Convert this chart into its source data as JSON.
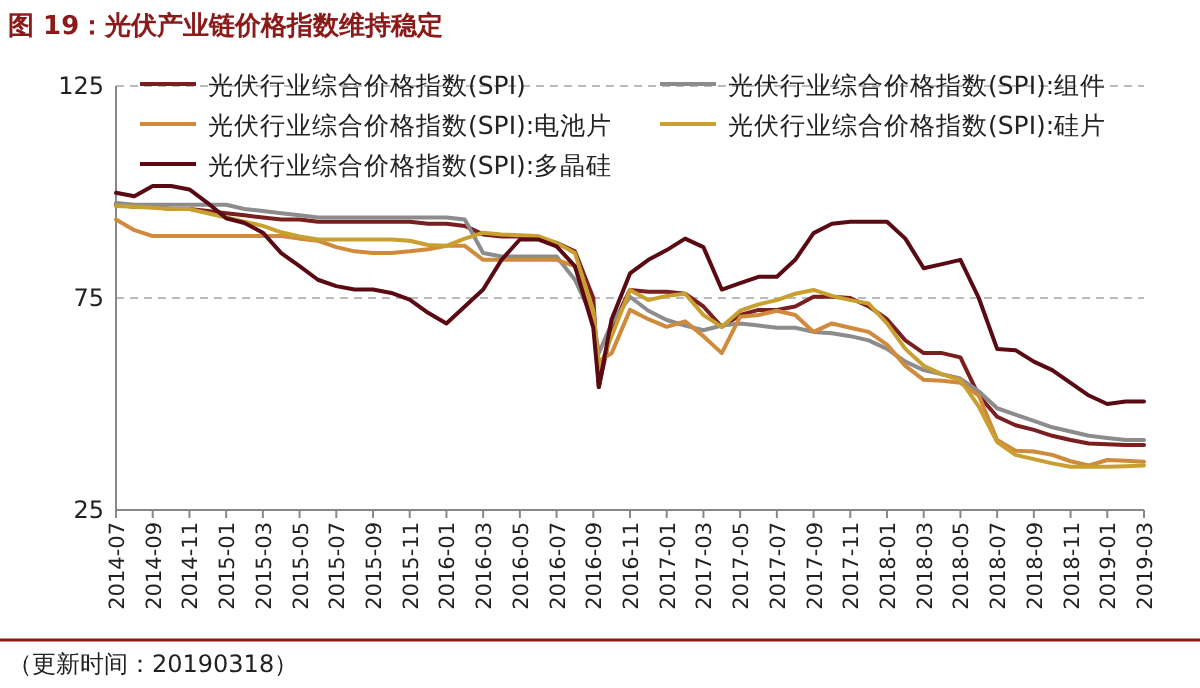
{
  "chart_data": {
    "type": "line",
    "title": "图 19：光伏产业链价格指数维持稳定",
    "annotations": [
      "（更新时间：20190318）"
    ],
    "x": [
      "2014-07",
      "2014-08",
      "2014-09",
      "2014-10",
      "2014-11",
      "2014-12",
      "2015-01",
      "2015-02",
      "2015-03",
      "2015-04",
      "2015-05",
      "2015-06",
      "2015-07",
      "2015-08",
      "2015-09",
      "2015-10",
      "2015-11",
      "2015-12",
      "2016-01",
      "2016-02",
      "2016-03",
      "2016-04",
      "2016-05",
      "2016-06",
      "2016-07",
      "2016-08",
      "2016-09",
      "2016-09-10",
      "2016-10",
      "2016-11",
      "2016-12",
      "2017-01",
      "2017-02",
      "2017-03",
      "2017-04",
      "2017-05",
      "2017-06",
      "2017-07",
      "2017-08",
      "2017-09",
      "2017-10",
      "2017-11",
      "2017-12",
      "2018-01",
      "2018-02",
      "2018-03",
      "2018-04",
      "2018-05",
      "2018-06",
      "2018-07",
      "2018-08",
      "2018-09",
      "2018-10",
      "2018-11",
      "2018-12",
      "2019-01",
      "2019-02",
      "2019-03"
    ],
    "series": [
      {
        "name": "光伏行业综合价格指数(SPI)",
        "color": "#7a1f1f",
        "values": [
          97,
          96.5,
          96.5,
          96,
          96,
          95.5,
          95,
          94.5,
          94,
          93.5,
          93.5,
          93,
          93,
          93,
          93,
          93,
          93,
          92.5,
          92.5,
          92,
          90,
          89.5,
          89.5,
          89,
          88,
          86,
          75,
          54,
          68,
          76.9,
          76.5,
          76.5,
          76,
          73,
          68.2,
          71,
          72.2,
          72.2,
          73,
          75.3,
          75.3,
          75,
          73,
          70,
          65,
          62,
          62,
          61,
          52,
          47,
          45,
          43.9,
          42.5,
          41.5,
          40.7,
          40.5,
          40.3,
          40.3
        ]
      },
      {
        "name": "光伏行业综合价格指数(SPI):组件",
        "color": "#8c8c8c",
        "values": [
          97.4,
          97,
          97,
          97,
          97,
          97,
          97,
          96,
          95.5,
          95,
          94.5,
          94,
          94,
          94,
          94,
          94,
          94,
          94,
          94,
          93.5,
          85.6,
          84.8,
          84.8,
          84.8,
          84.8,
          79.3,
          70,
          62,
          69,
          75.3,
          72,
          69.8,
          68.5,
          67.4,
          68.5,
          69,
          68.5,
          68,
          68,
          67,
          66.7,
          66,
          65,
          63,
          60,
          58,
          57,
          56,
          53,
          49,
          47.5,
          46,
          44.5,
          43.5,
          42.5,
          42,
          41.5,
          41.5
        ]
      },
      {
        "name": "光伏行业综合价格指数(SPI):电池片",
        "color": "#d08a3c",
        "values": [
          93.5,
          91,
          89.6,
          89.6,
          89.6,
          89.6,
          89.6,
          89.6,
          89.6,
          89.6,
          89,
          88.5,
          87,
          86,
          85.6,
          85.6,
          86,
          86.5,
          87.3,
          87.3,
          84,
          84,
          84,
          84,
          84,
          82.5,
          71.5,
          60,
          62,
          72.2,
          70,
          68.2,
          69.5,
          66,
          62,
          70.6,
          71,
          72,
          71,
          67,
          69,
          68,
          67,
          64,
          59,
          55.7,
          55.5,
          55,
          52,
          41.5,
          39,
          38.8,
          38,
          36.5,
          35.5,
          36.8,
          36.6,
          36.4
        ]
      },
      {
        "name": "光伏行业综合价格指数(SPI):硅片",
        "color": "#c9a030",
        "values": [
          96.7,
          96.5,
          96.3,
          96,
          96,
          95,
          94,
          93,
          92,
          90.5,
          89.5,
          88.8,
          88.8,
          88.8,
          88.8,
          88.8,
          88.5,
          87.5,
          87.3,
          89,
          90.4,
          90,
          89.8,
          89.6,
          88,
          85.6,
          72,
          58,
          66,
          76.9,
          74.5,
          75.5,
          76,
          71,
          68.2,
          72,
          73.5,
          74.5,
          76,
          76.9,
          75.5,
          74.5,
          73.7,
          69,
          63,
          59,
          57,
          55.7,
          49.4,
          41,
          38,
          37,
          36,
          35.2,
          35.2,
          35.2,
          35.3,
          35.5
        ]
      },
      {
        "name": "光伏行业综合价格指数(SPI):多晶硅",
        "color": "#5a0a12",
        "values": [
          99.8,
          99,
          101.4,
          101.4,
          100.6,
          97.4,
          93.8,
          92.7,
          90.4,
          85.6,
          82.5,
          79.3,
          77.8,
          77,
          77,
          76.2,
          74.6,
          71.5,
          69,
          73,
          77,
          84,
          88.8,
          88.8,
          87.2,
          82.5,
          68,
          54,
          70,
          80.8,
          84,
          86.3,
          89,
          87,
          77,
          78.5,
          80,
          80,
          84,
          90.3,
          92.5,
          93,
          93,
          93,
          89,
          82,
          83,
          84,
          75,
          63,
          62.7,
          60,
          58,
          55,
          52,
          50,
          50.6,
          50.6
        ]
      }
    ],
    "xlim": [
      "2014-07",
      "2019-03"
    ],
    "xticks": [
      "2014-07",
      "2014-09",
      "2014-11",
      "2015-01",
      "2015-03",
      "2015-05",
      "2015-07",
      "2015-09",
      "2015-11",
      "2016-01",
      "2016-03",
      "2016-05",
      "2016-07",
      "2016-09",
      "2016-11",
      "2017-01",
      "2017-03",
      "2017-05",
      "2017-07",
      "2017-09",
      "2017-11",
      "2018-01",
      "2018-03",
      "2018-05",
      "2018-07",
      "2018-09",
      "2018-11",
      "2019-01",
      "2019-03"
    ],
    "ylim": [
      25,
      125
    ],
    "yticks": [
      25,
      75,
      125
    ],
    "grid": "y",
    "legend": "top"
  }
}
